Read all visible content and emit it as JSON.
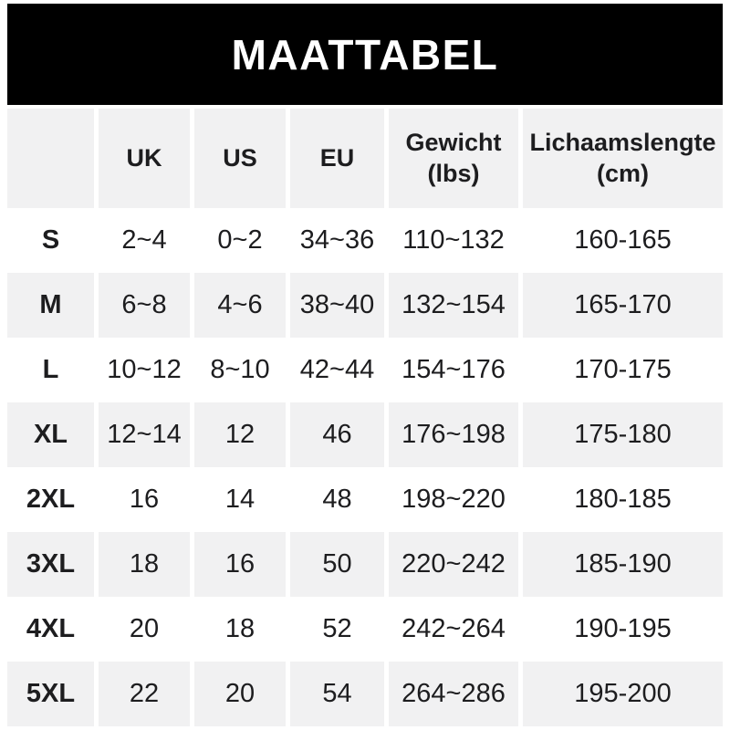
{
  "banner": {
    "title": "MAATTABEL"
  },
  "colors": {
    "banner_bg": "#000000",
    "banner_text": "#ffffff",
    "row_alt_bg": "#f1f1f2",
    "row_bg": "#ffffff",
    "text": "#1d1d1f"
  },
  "chart_data": {
    "type": "table",
    "title": "MAATTABEL",
    "legend_position": "none",
    "grid": "alternating-row-shading",
    "columns": [
      {
        "label": ""
      },
      {
        "label": "UK"
      },
      {
        "label": "US"
      },
      {
        "label": "EU"
      },
      {
        "label": "Gewicht",
        "sub": "(lbs)"
      },
      {
        "label": "Lichaamslengte",
        "sub": "(cm)"
      }
    ],
    "rows": [
      {
        "size": "S",
        "uk": "2~4",
        "us": "0~2",
        "eu": "34~36",
        "gewicht_lbs": "110~132",
        "lichaamslengte_cm": "160-165"
      },
      {
        "size": "M",
        "uk": "6~8",
        "us": "4~6",
        "eu": "38~40",
        "gewicht_lbs": "132~154",
        "lichaamslengte_cm": "165-170"
      },
      {
        "size": "L",
        "uk": "10~12",
        "us": "8~10",
        "eu": "42~44",
        "gewicht_lbs": "154~176",
        "lichaamslengte_cm": "170-175"
      },
      {
        "size": "XL",
        "uk": "12~14",
        "us": "12",
        "eu": "46",
        "gewicht_lbs": "176~198",
        "lichaamslengte_cm": "175-180"
      },
      {
        "size": "2XL",
        "uk": "16",
        "us": "14",
        "eu": "48",
        "gewicht_lbs": "198~220",
        "lichaamslengte_cm": "180-185"
      },
      {
        "size": "3XL",
        "uk": "18",
        "us": "16",
        "eu": "50",
        "gewicht_lbs": "220~242",
        "lichaamslengte_cm": "185-190"
      },
      {
        "size": "4XL",
        "uk": "20",
        "us": "18",
        "eu": "52",
        "gewicht_lbs": "242~264",
        "lichaamslengte_cm": "190-195"
      },
      {
        "size": "5XL",
        "uk": "22",
        "us": "20",
        "eu": "54",
        "gewicht_lbs": "264~286",
        "lichaamslengte_cm": "195-200"
      }
    ]
  }
}
